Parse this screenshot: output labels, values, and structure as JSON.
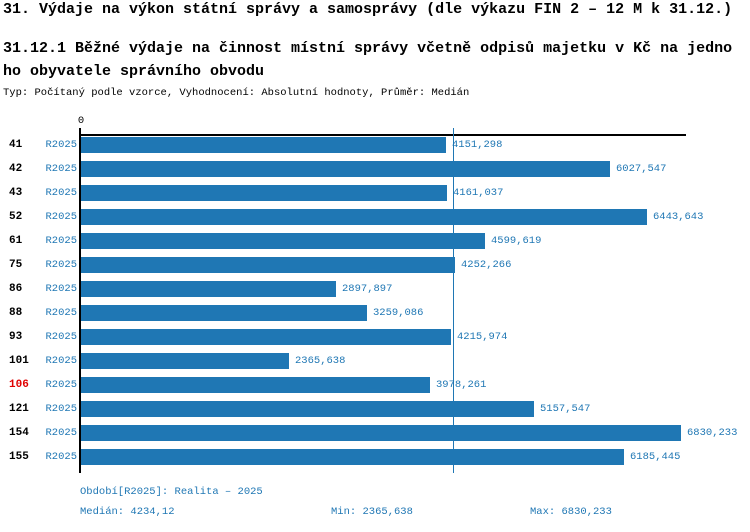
{
  "header": {
    "title": "31. Výdaje na výkon státní správy a samosprávy (dle výkazu FIN 2 – 12 M k 31.12.)",
    "subtitle_lines": [
      "31.12.1 Běžné výdaje na činnost místní správy včetně odpisů majetku v Kč na jedno",
      "ho obyvatele správního obvodu"
    ],
    "meta_line": "Typ: Počítaný podle vzorce, Vyhodnocení: Absolutní hodnoty, Průměr: Medián"
  },
  "chart_data": {
    "type": "bar",
    "orientation": "horizontal",
    "title": "Běžné výdaje na činnost místní správy včetně odpisů majetku v Kč na jednoho obyvatele správního obvodu",
    "series_label": "R2025",
    "categories": [
      "41",
      "42",
      "43",
      "52",
      "61",
      "75",
      "86",
      "88",
      "93",
      "101",
      "106",
      "121",
      "154",
      "155"
    ],
    "values": [
      4151.298,
      6027.547,
      4161.037,
      6443.643,
      4599.619,
      4252.266,
      2897.897,
      3259.086,
      4215.974,
      2365.638,
      3978.261,
      5157.547,
      6830.233,
      6185.445
    ],
    "value_labels": [
      "4151,298",
      "6027,547",
      "4161,037",
      "6443,643",
      "4599,619",
      "4252,266",
      "2897,897",
      "3259,086",
      "4215,974",
      "2365,638",
      "3978,261",
      "5157,547",
      "6830,233",
      "6185,445"
    ],
    "highlighted_category": "106",
    "axis_origin_label": "0",
    "xlim": [
      0,
      6887
    ],
    "median": 4234.12,
    "grid": false,
    "legend": "none",
    "bar_color": "#1f77b4",
    "text_color": "#1f77b4",
    "highlight_color": "#e00000"
  },
  "footer": {
    "period_line": "Období[R2025]: Realita – 2025",
    "median_label": "Medián: 4234,12",
    "min_label": "Min: 2365,638",
    "max_label": "Max: 6830,233"
  }
}
